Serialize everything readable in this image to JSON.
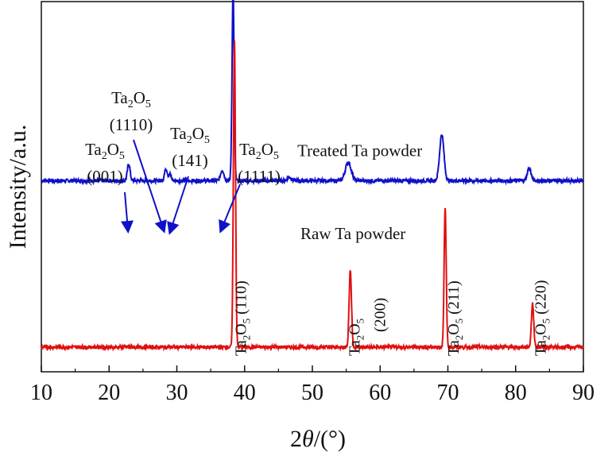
{
  "chart_data": {
    "type": "line",
    "xlabel": "2θ/(°)",
    "ylabel": "Intensity/a.u.",
    "xlim": [
      10,
      90
    ],
    "x_ticks": [
      "10",
      "20",
      "30",
      "40",
      "50",
      "60",
      "70",
      "80",
      "90"
    ],
    "series": [
      {
        "name": "Treated Ta powder",
        "color": "#1010c8",
        "baseline": 0.62,
        "noise": 0.006,
        "peaks": [
          {
            "x": 22.9,
            "h": 0.055,
            "w": 0.28
          },
          {
            "x": 28.4,
            "h": 0.04,
            "w": 0.3
          },
          {
            "x": 29.0,
            "h": 0.02,
            "w": 0.25
          },
          {
            "x": 36.7,
            "h": 0.035,
            "w": 0.35
          },
          {
            "x": 38.3,
            "h": 0.61,
            "w": 0.22
          },
          {
            "x": 46.6,
            "h": 0.012,
            "w": 0.4
          },
          {
            "x": 55.3,
            "h": 0.06,
            "w": 0.6
          },
          {
            "x": 69.1,
            "h": 0.15,
            "w": 0.45
          },
          {
            "x": 82.0,
            "h": 0.04,
            "w": 0.4
          }
        ]
      },
      {
        "name": "Raw Ta powder",
        "color": "#e01010",
        "baseline": 0.08,
        "noise": 0.006,
        "peaks": [
          {
            "x": 38.5,
            "h": 1.0,
            "w": 0.22
          },
          {
            "x": 55.6,
            "h": 0.25,
            "w": 0.25
          },
          {
            "x": 69.6,
            "h": 0.45,
            "w": 0.22
          },
          {
            "x": 82.5,
            "h": 0.14,
            "w": 0.25
          }
        ]
      }
    ],
    "series_labels": [
      {
        "text": "Treated Ta powder",
        "x": 57,
        "y": 0.7
      },
      {
        "text": "Raw Ta powder",
        "x": 56,
        "y": 0.43
      }
    ],
    "annotations": [
      {
        "lines": [
          "Ta",
          "2",
          "O",
          "5",
          "(001)"
        ],
        "target_x": 22.9
      },
      {
        "lines": [
          "Ta",
          "2",
          "O",
          "5",
          "(1110)"
        ],
        "target_x": 28.3
      },
      {
        "lines": [
          "Ta",
          "2",
          "O",
          "5",
          "(141)"
        ],
        "target_x": 28.9
      },
      {
        "lines": [
          "Ta",
          "2",
          "O",
          "5",
          "(1111)"
        ],
        "target_x": 36.8
      }
    ],
    "vertical_labels": [
      {
        "ta": "Ta",
        "sub1": "2",
        "o": "O",
        "sub2": "5",
        "hkl": "(110)",
        "x": 40.2
      },
      {
        "ta": "Ta",
        "sub1": "2",
        "o": "O",
        "sub2": "5",
        "hkl": "(200)",
        "x": 57.0
      },
      {
        "ta": "Ta",
        "sub1": "2",
        "o": "O",
        "sub2": "5",
        "hkl": "(211)",
        "x": 71.6
      },
      {
        "ta": "Ta",
        "sub1": "2",
        "o": "O",
        "sub2": "5",
        "hkl": "(220)",
        "x": 84.4
      }
    ]
  }
}
